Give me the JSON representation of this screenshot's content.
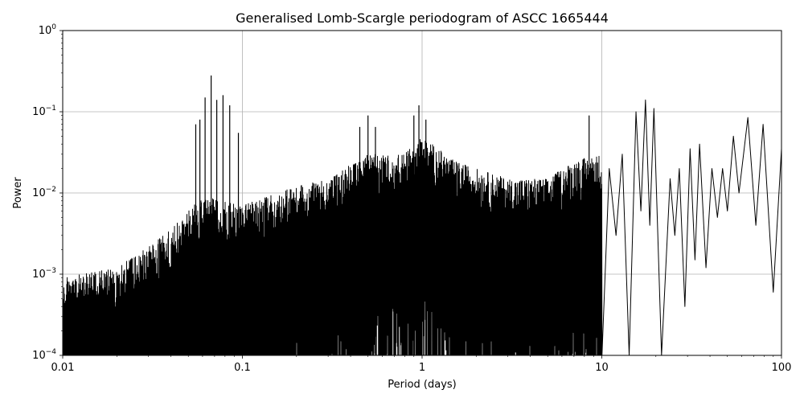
{
  "chart_data": {
    "type": "line",
    "title": "Generalised Lomb-Scargle periodogram of ASCC 1665444",
    "xlabel": "Period (days)",
    "ylabel": "Power",
    "xscale": "log",
    "yscale": "log",
    "xlim": [
      0.01,
      100
    ],
    "ylim": [
      0.0001,
      1
    ],
    "grid": true,
    "line_color": "#000000",
    "x_ticks": [
      {
        "value": 0.01,
        "label": "0.01"
      },
      {
        "value": 0.1,
        "label": "0.1"
      },
      {
        "value": 1,
        "label": "1"
      },
      {
        "value": 10,
        "label": "10"
      },
      {
        "value": 100,
        "label": "100"
      }
    ],
    "y_ticks": [
      {
        "value": 0.0001,
        "base": "10",
        "exp": "−4"
      },
      {
        "value": 0.001,
        "base": "10",
        "exp": "−3"
      },
      {
        "value": 0.01,
        "base": "10",
        "exp": "−2"
      },
      {
        "value": 0.1,
        "base": "10",
        "exp": "−1"
      },
      {
        "value": 1,
        "base": "10",
        "exp": "0"
      }
    ],
    "envelope": [
      {
        "x": 0.01,
        "y": 0.0009
      },
      {
        "x": 0.02,
        "y": 0.0012
      },
      {
        "x": 0.03,
        "y": 0.0022
      },
      {
        "x": 0.04,
        "y": 0.0035
      },
      {
        "x": 0.05,
        "y": 0.006
      },
      {
        "x": 0.06,
        "y": 0.009
      },
      {
        "x": 0.08,
        "y": 0.008
      },
      {
        "x": 0.1,
        "y": 0.007
      },
      {
        "x": 0.2,
        "y": 0.012
      },
      {
        "x": 0.3,
        "y": 0.015
      },
      {
        "x": 0.5,
        "y": 0.03
      },
      {
        "x": 0.8,
        "y": 0.03
      },
      {
        "x": 1,
        "y": 0.05
      },
      {
        "x": 1.5,
        "y": 0.025
      },
      {
        "x": 2,
        "y": 0.02
      },
      {
        "x": 3,
        "y": 0.015
      },
      {
        "x": 5,
        "y": 0.015
      },
      {
        "x": 7,
        "y": 0.025
      },
      {
        "x": 10,
        "y": 0.03
      }
    ],
    "peaks": [
      {
        "x": 0.055,
        "y": 0.07
      },
      {
        "x": 0.058,
        "y": 0.08
      },
      {
        "x": 0.062,
        "y": 0.15
      },
      {
        "x": 0.067,
        "y": 0.28
      },
      {
        "x": 0.072,
        "y": 0.14
      },
      {
        "x": 0.078,
        "y": 0.16
      },
      {
        "x": 0.085,
        "y": 0.12
      },
      {
        "x": 0.095,
        "y": 0.055
      },
      {
        "x": 0.45,
        "y": 0.065
      },
      {
        "x": 0.5,
        "y": 0.09
      },
      {
        "x": 0.55,
        "y": 0.065
      },
      {
        "x": 0.9,
        "y": 0.09
      },
      {
        "x": 0.96,
        "y": 0.12
      },
      {
        "x": 1.05,
        "y": 0.08
      },
      {
        "x": 8.5,
        "y": 0.09
      }
    ],
    "smooth_peaks": [
      {
        "x": 11,
        "y": 0.02
      },
      {
        "x": 13,
        "y": 0.03
      },
      {
        "x": 15.5,
        "y": 0.1
      },
      {
        "x": 17.5,
        "y": 0.14
      },
      {
        "x": 19.5,
        "y": 0.11
      },
      {
        "x": 24,
        "y": 0.015
      },
      {
        "x": 27,
        "y": 0.02
      },
      {
        "x": 31,
        "y": 0.035
      },
      {
        "x": 35,
        "y": 0.04
      },
      {
        "x": 41,
        "y": 0.02
      },
      {
        "x": 47,
        "y": 0.02
      },
      {
        "x": 54,
        "y": 0.05
      },
      {
        "x": 65,
        "y": 0.085
      },
      {
        "x": 79,
        "y": 0.07
      },
      {
        "x": 100,
        "y": 0.035
      }
    ],
    "smooth_dips": [
      {
        "x": 12,
        "y": 0.003
      },
      {
        "x": 14.2,
        "y": 0.0001
      },
      {
        "x": 16.5,
        "y": 0.006
      },
      {
        "x": 18.5,
        "y": 0.004
      },
      {
        "x": 21.5,
        "y": 0.0001
      },
      {
        "x": 25.5,
        "y": 0.003
      },
      {
        "x": 29,
        "y": 0.0004
      },
      {
        "x": 33,
        "y": 0.0015
      },
      {
        "x": 38,
        "y": 0.0012
      },
      {
        "x": 44,
        "y": 0.005
      },
      {
        "x": 50,
        "y": 0.006
      },
      {
        "x": 58,
        "y": 0.01
      },
      {
        "x": 72,
        "y": 0.004
      },
      {
        "x": 90,
        "y": 0.0006
      }
    ]
  }
}
